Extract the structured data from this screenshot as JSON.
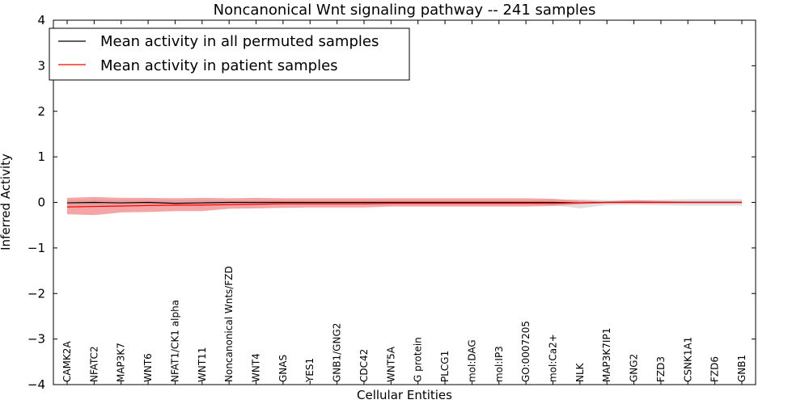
{
  "chart_data": {
    "type": "line",
    "title": "Noncanonical Wnt signaling pathway -- 241 samples",
    "xlabel": "Cellular Entities",
    "ylabel": "Inferred Activity",
    "ylim": [
      -4,
      4
    ],
    "yticks": [
      -4,
      -3,
      -2,
      -1,
      0,
      1,
      2,
      3,
      4
    ],
    "ytick_labels": [
      "−4",
      "−3",
      "−2",
      "−1",
      "0",
      "1",
      "2",
      "3",
      "4"
    ],
    "grid": false,
    "legend_position": "top-left",
    "categories": [
      "CAMK2A",
      "NFATC2",
      "MAP3K7",
      "WNT6",
      "NFAT1/CK1 alpha",
      "WNT11",
      "Noncanonical Wnts/FZD",
      "WNT4",
      "GNAS",
      "YES1",
      "GNB1/GNG2",
      "CDC42",
      "WNT5A",
      "G protein",
      "PLCG1",
      "mol:DAG",
      "mol:IP3",
      "GO:0007205",
      "mol:Ca2+",
      "NLK",
      "MAP3K7IP1",
      "GNG2",
      "FZD3",
      "CSNK1A1",
      "FZD6",
      "GNB1"
    ],
    "series": [
      {
        "name": "Mean activity in all permuted samples",
        "color": "#000000",
        "values": [
          -0.01,
          0.0,
          -0.01,
          0.0,
          -0.02,
          -0.01,
          0.0,
          0.0,
          0.0,
          0.0,
          0.0,
          0.0,
          0.0,
          0.0,
          0.0,
          0.0,
          0.0,
          0.0,
          0.0,
          -0.01,
          0.0,
          0.0,
          0.0,
          0.0,
          0.0,
          0.0
        ],
        "band_low": [
          -0.07,
          -0.08,
          -0.06,
          -0.06,
          -0.08,
          -0.06,
          -0.05,
          -0.05,
          -0.05,
          -0.05,
          -0.05,
          -0.05,
          -0.05,
          -0.05,
          -0.05,
          -0.05,
          -0.05,
          -0.05,
          -0.06,
          -0.13,
          -0.06,
          -0.05,
          -0.06,
          -0.07,
          -0.07,
          -0.07
        ],
        "band_high": [
          0.05,
          0.06,
          0.05,
          0.05,
          0.05,
          0.05,
          0.04,
          0.04,
          0.04,
          0.04,
          0.04,
          0.04,
          0.04,
          0.04,
          0.04,
          0.04,
          0.04,
          0.04,
          0.05,
          0.07,
          0.05,
          0.05,
          0.06,
          0.07,
          0.07,
          0.07
        ]
      },
      {
        "name": "Mean activity in patient samples",
        "color": "#ff0000",
        "values": [
          -0.1,
          -0.09,
          -0.08,
          -0.07,
          -0.06,
          -0.06,
          -0.05,
          -0.04,
          -0.03,
          -0.03,
          -0.03,
          -0.03,
          -0.02,
          -0.02,
          -0.02,
          -0.02,
          -0.02,
          -0.02,
          -0.02,
          -0.01,
          0.0,
          0.0,
          0.0,
          0.0,
          0.0,
          0.0
        ],
        "band_low": [
          -0.26,
          -0.28,
          -0.22,
          -0.21,
          -0.19,
          -0.19,
          -0.14,
          -0.13,
          -0.12,
          -0.11,
          -0.11,
          -0.11,
          -0.09,
          -0.09,
          -0.09,
          -0.09,
          -0.09,
          -0.09,
          -0.08,
          -0.04,
          -0.01,
          -0.01,
          -0.01,
          -0.01,
          -0.01,
          -0.01
        ],
        "band_high": [
          0.1,
          0.12,
          0.1,
          0.1,
          0.09,
          0.1,
          0.09,
          0.1,
          0.09,
          0.09,
          0.09,
          0.09,
          0.09,
          0.09,
          0.09,
          0.09,
          0.09,
          0.09,
          0.08,
          0.04,
          0.02,
          0.05,
          0.03,
          0.02,
          0.02,
          0.02
        ]
      }
    ]
  }
}
